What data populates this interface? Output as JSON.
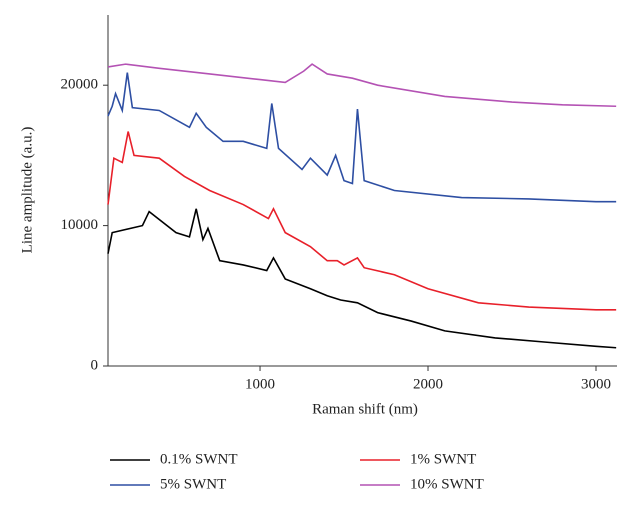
{
  "chart_data": {
    "type": "line",
    "xlabel": "Raman shift (nm)",
    "ylabel": "Line amplitude (a.u.)",
    "xlim": [
      95,
      3125
    ],
    "xticks": [
      1000,
      2000,
      3000
    ],
    "ylim": [
      0,
      25000
    ],
    "yticks": [
      0,
      10000,
      20000
    ],
    "legend": "bottom",
    "series": [
      {
        "name": "0.1% SWNT",
        "color": "#000000",
        "x": [
          95,
          120,
          300,
          340,
          500,
          580,
          620,
          660,
          690,
          760,
          900,
          1040,
          1080,
          1150,
          1300,
          1400,
          1480,
          1580,
          1700,
          1900,
          2100,
          2400,
          2700,
          3000,
          3120
        ],
        "values": [
          8000,
          9500,
          10000,
          11000,
          9500,
          9200,
          11200,
          9000,
          9800,
          7500,
          7200,
          6800,
          7700,
          6200,
          5500,
          5000,
          4700,
          4500,
          3800,
          3200,
          2500,
          2000,
          1700,
          1400,
          1300
        ]
      },
      {
        "name": "1% SWNT",
        "color": "#e8202a",
        "x": [
          95,
          130,
          180,
          215,
          250,
          400,
          550,
          700,
          900,
          1050,
          1080,
          1150,
          1300,
          1400,
          1460,
          1500,
          1580,
          1620,
          1800,
          2000,
          2300,
          2600,
          3000,
          3120
        ],
        "values": [
          11500,
          14800,
          14500,
          16700,
          15000,
          14800,
          13500,
          12500,
          11500,
          10500,
          11200,
          9500,
          8500,
          7500,
          7500,
          7200,
          7700,
          7000,
          6500,
          5500,
          4500,
          4200,
          4000,
          4000
        ]
      },
      {
        "name": "5% SWNT",
        "color": "#2e4fa3",
        "x": [
          95,
          120,
          140,
          180,
          210,
          240,
          400,
          580,
          620,
          680,
          780,
          900,
          1040,
          1070,
          1110,
          1250,
          1300,
          1400,
          1450,
          1500,
          1550,
          1580,
          1620,
          1800,
          2200,
          2600,
          3000,
          3120
        ],
        "values": [
          17800,
          18500,
          19400,
          18200,
          20900,
          18400,
          18200,
          17000,
          18000,
          17000,
          16000,
          16000,
          15500,
          18700,
          15500,
          14000,
          14800,
          13600,
          15000,
          13200,
          13000,
          18300,
          13200,
          12500,
          12000,
          11900,
          11700,
          11700
        ]
      },
      {
        "name": "10% SWNT",
        "color": "#b452b4",
        "x": [
          95,
          200,
          400,
          700,
          1000,
          1150,
          1260,
          1310,
          1400,
          1550,
          1700,
          2100,
          2500,
          2800,
          3120
        ],
        "values": [
          21300,
          21500,
          21200,
          20800,
          20400,
          20200,
          21000,
          21500,
          20800,
          20500,
          20000,
          19200,
          18800,
          18600,
          18500
        ]
      }
    ]
  }
}
